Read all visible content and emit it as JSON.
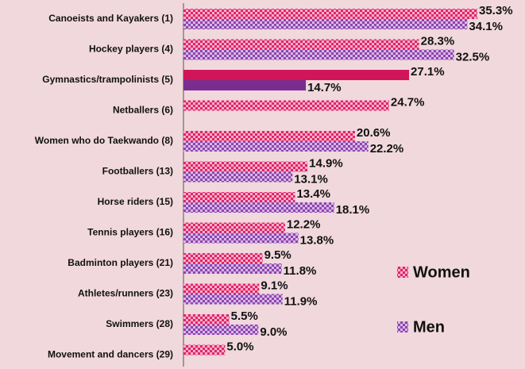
{
  "chart_data": {
    "type": "bar",
    "orientation": "horizontal",
    "categories": [
      "Canoeists and Kayakers (1)",
      "Hockey players (4)",
      "Gymnastics/trampolinists (5)",
      "Netballers (6)",
      "Women who do Taekwando (8)",
      "Footballers (13)",
      "Horse riders (15)",
      "Tennis players (16)",
      "Badminton players (21)",
      "Athletes/runners (23)",
      "Swimmers (28)",
      "Movement and dancers (29)"
    ],
    "series": [
      {
        "name": "Women",
        "color": "#e0246a",
        "values": [
          35.3,
          28.3,
          27.1,
          24.7,
          20.6,
          14.9,
          13.4,
          12.2,
          9.5,
          9.1,
          5.5,
          5.0
        ],
        "value_labels": [
          "35.3%",
          "28.3%",
          "27.1%",
          "24.7%",
          "20.6%",
          "14.9%",
          "13.4%",
          "12.2%",
          "9.5%",
          "9.1%",
          "5.5%",
          "5.0%"
        ]
      },
      {
        "name": "Men",
        "color": "#8e44ad",
        "values": [
          34.1,
          32.5,
          14.7,
          null,
          22.2,
          13.1,
          18.1,
          13.8,
          11.8,
          11.9,
          9.0,
          null
        ],
        "value_labels": [
          "34.1%",
          "32.5%",
          "14.7%",
          null,
          "22.2%",
          "13.1%",
          "18.1%",
          "13.8%",
          "11.8%",
          "11.9%",
          "9.0%",
          null
        ]
      }
    ],
    "highlight_index": 2,
    "legend": "right"
  }
}
